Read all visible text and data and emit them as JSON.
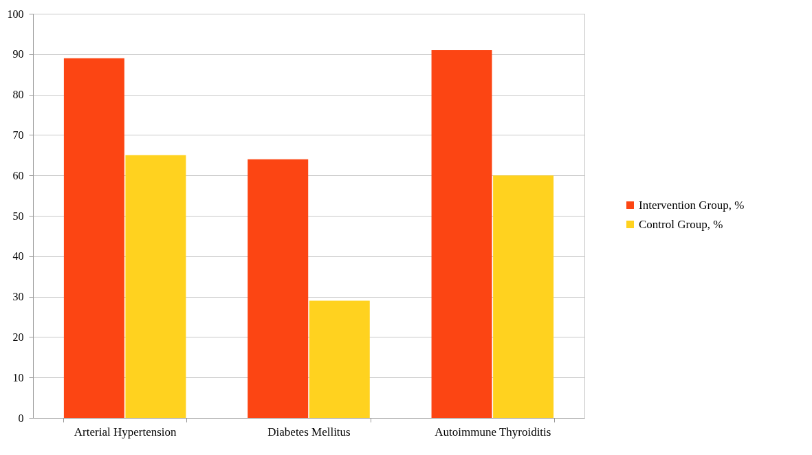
{
  "chart_data": {
    "type": "bar",
    "categories": [
      "Arterial Hypertension",
      "Diabetes Mellitus",
      "Autoimmune Thyroiditis"
    ],
    "series": [
      {
        "name": "Intervention Group, %",
        "color": "#fc4513",
        "values": [
          89,
          64,
          91
        ]
      },
      {
        "name": "Control Group, %",
        "color": "#ffd21f",
        "values": [
          65,
          29,
          60
        ]
      }
    ],
    "ylim": [
      0,
      100
    ],
    "yticks": [
      0,
      10,
      20,
      30,
      40,
      50,
      60,
      70,
      80,
      90,
      100
    ],
    "grid": "y",
    "legend": "right"
  }
}
